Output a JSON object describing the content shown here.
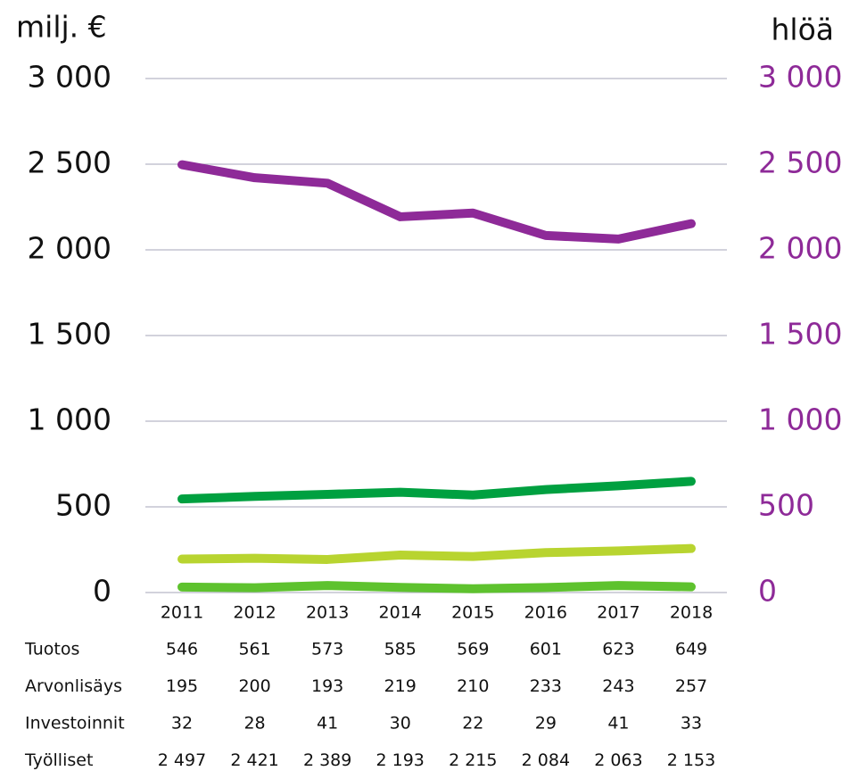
{
  "chart_data": {
    "type": "line",
    "y_axis_label": "milj. €",
    "y2_axis_label": "hlöä",
    "categories": [
      "2011",
      "2012",
      "2013",
      "2014",
      "2015",
      "2016",
      "2017",
      "2018"
    ],
    "series": [
      {
        "name": "Tuotos",
        "color": "#00a040",
        "values": [
          546,
          561,
          573,
          585,
          569,
          601,
          623,
          649
        ]
      },
      {
        "name": "Arvonlisäys",
        "color": "#b8d430",
        "values": [
          195,
          200,
          193,
          219,
          210,
          233,
          243,
          257
        ]
      },
      {
        "name": "Investoinnit",
        "color": "#5ec22e",
        "values": [
          32,
          28,
          41,
          30,
          22,
          29,
          41,
          33
        ]
      },
      {
        "name": "Työlliset",
        "color": "#8e2a98",
        "axis": "y2",
        "values": [
          2497,
          2421,
          2389,
          2193,
          2215,
          2084,
          2063,
          2153
        ],
        "value_labels": [
          "2 497",
          "2 421",
          "2 389",
          "2 193",
          "2 215",
          "2 084",
          "2 063",
          "2 153"
        ]
      }
    ],
    "ylim": [
      0,
      3000
    ],
    "yticks": [
      0,
      500,
      {
        "value": 1000,
        "label": "1 000"
      },
      {
        "value": 1500,
        "label": "1 500"
      },
      {
        "value": 2000,
        "label": "2 000"
      },
      {
        "value": 2500,
        "label": "2 500"
      },
      {
        "value": 3000,
        "label": "3 000"
      }
    ],
    "y2lim": [
      0,
      3000
    ],
    "y2ticks": [
      0,
      500,
      {
        "value": 1000,
        "label": "1 000"
      },
      {
        "value": 1500,
        "label": "1 500"
      },
      {
        "value": 2000,
        "label": "2 000"
      },
      {
        "value": 2500,
        "label": "2 500"
      },
      {
        "value": 3000,
        "label": "3 000"
      }
    ],
    "y2_color": "#8e2a98",
    "grid": true
  }
}
